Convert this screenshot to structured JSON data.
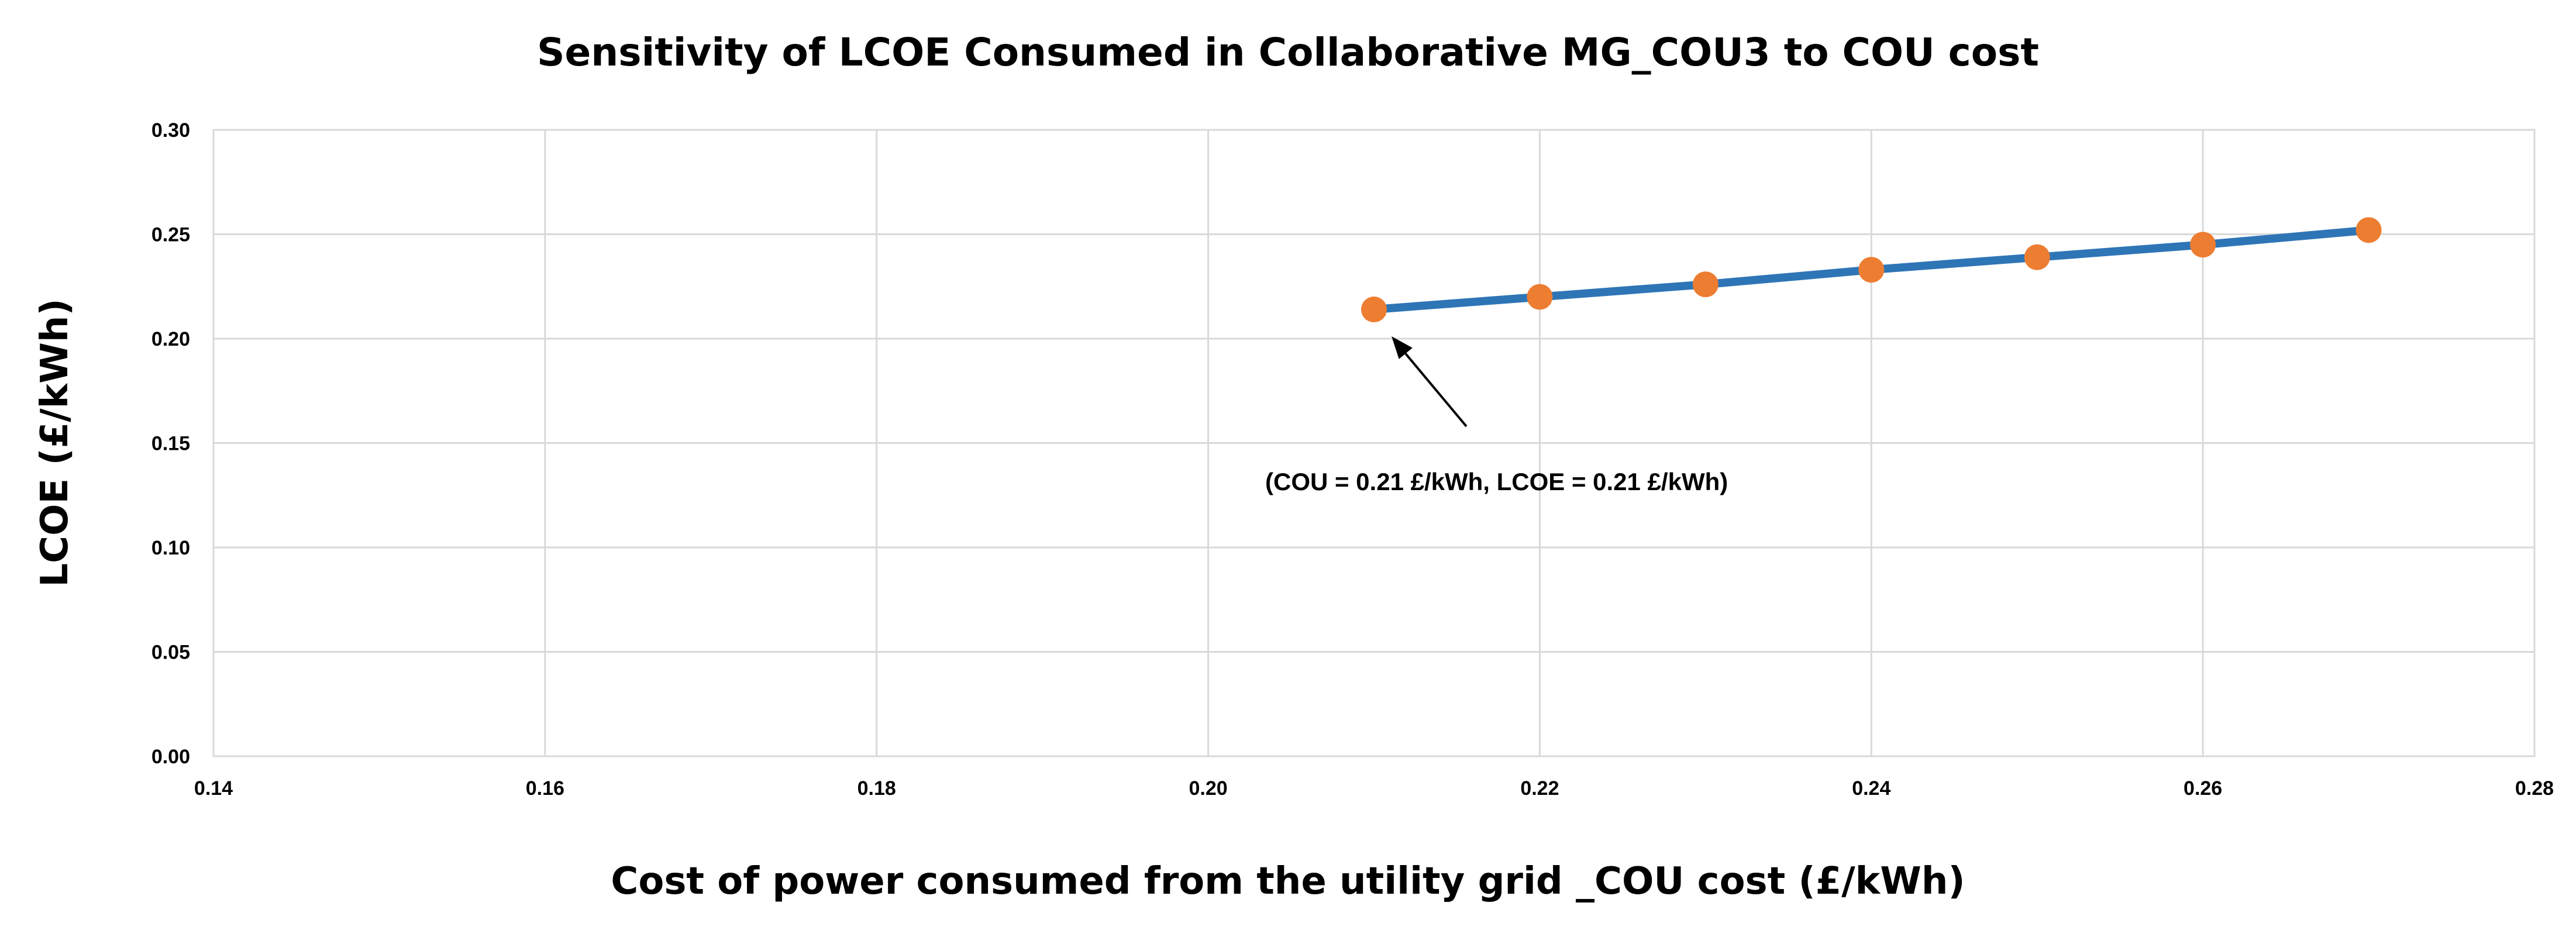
{
  "chart_data": {
    "type": "line",
    "title": "Sensitivity of LCOE Consumed in Collaborative MG_COU3 to COU cost",
    "xlabel": "Cost of power consumed from the utility grid _COU cost (£/kWh)",
    "ylabel": "LCOE (£/kWh)",
    "xlim": [
      0.14,
      0.28
    ],
    "ylim": [
      0.0,
      0.3
    ],
    "x_ticks": [
      "0.14",
      "0.16",
      "0.18",
      "0.20",
      "0.22",
      "0.24",
      "0.26",
      "0.28"
    ],
    "x_tick_values": [
      0.14,
      0.16,
      0.18,
      0.2,
      0.22,
      0.24,
      0.26,
      0.28
    ],
    "y_ticks": [
      "0.00",
      "0.05",
      "0.10",
      "0.15",
      "0.20",
      "0.25",
      "0.30"
    ],
    "y_tick_values": [
      0.0,
      0.05,
      0.1,
      0.15,
      0.2,
      0.25,
      0.3
    ],
    "grid": true,
    "series": [
      {
        "name": "LCOE",
        "x": [
          0.21,
          0.22,
          0.23,
          0.24,
          0.25,
          0.26,
          0.27
        ],
        "values": [
          0.214,
          0.22,
          0.226,
          0.233,
          0.239,
          0.245,
          0.252
        ],
        "line_color": "#2e75b6",
        "marker_color": "#ed7d31"
      }
    ],
    "annotation": {
      "text": "(COU = 0.21 £/kWh, LCOE = 0.21 £/kWh)",
      "target_x": 0.21,
      "target_y": 0.21
    }
  }
}
